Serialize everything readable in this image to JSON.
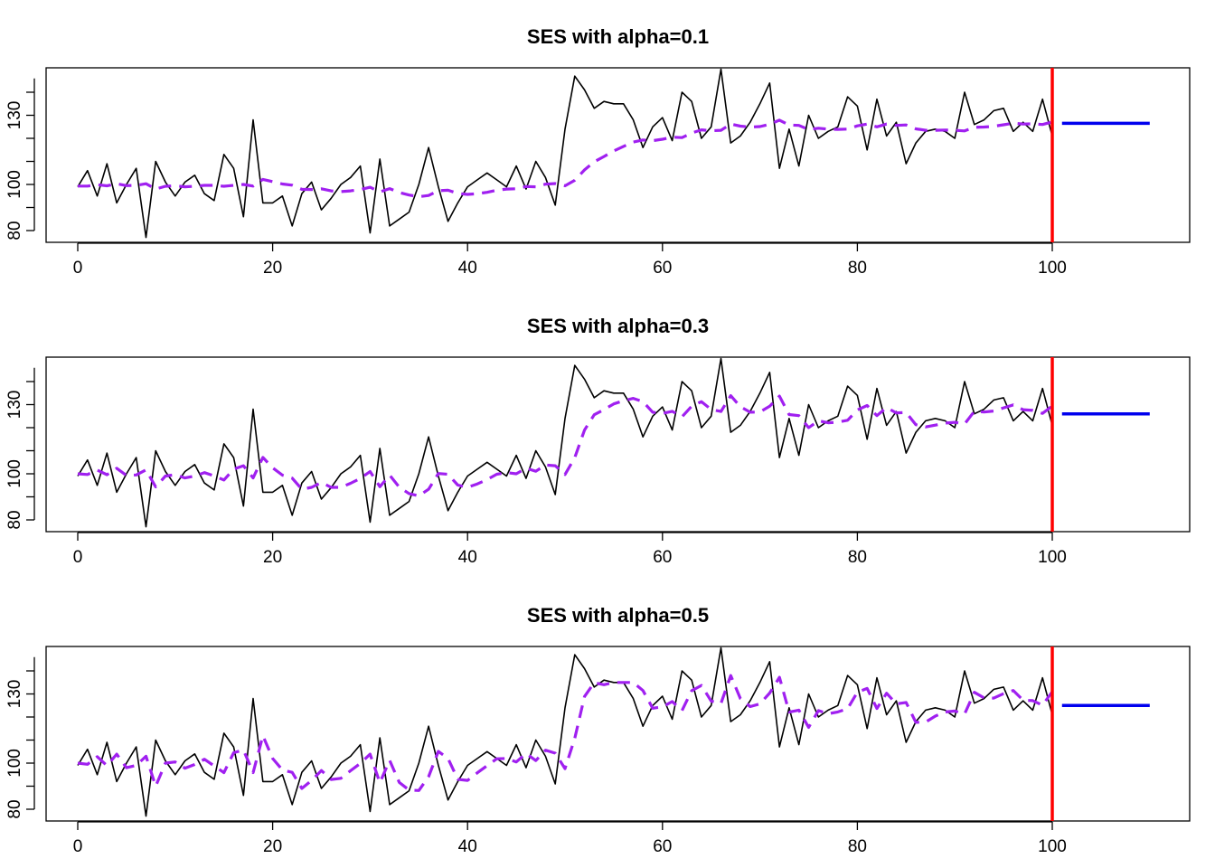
{
  "chart_data": [
    {
      "type": "line",
      "title": "SES with alpha=0.1",
      "alpha": 0.1,
      "xlim": [
        0,
        110
      ],
      "ylim": [
        75,
        147
      ],
      "x_ticks": [
        0,
        20,
        40,
        60,
        80,
        100
      ],
      "y_ticks": [
        80,
        100,
        130
      ],
      "forecast_origin": 100,
      "forecast_horizon": [
        101,
        110
      ],
      "forecast_value": 126.5,
      "colors": {
        "observed": "#000000",
        "fitted": "#a020f0",
        "forecast": "#0000ee",
        "origin_line": "#ff0000"
      },
      "series": [
        {
          "name": "observed",
          "style": "solid",
          "values": [
            99,
            106,
            95,
            109,
            92,
            100,
            107,
            77,
            110,
            101,
            95,
            101,
            104,
            96,
            93,
            113,
            107,
            86,
            128,
            92,
            92,
            95,
            82,
            96,
            101,
            89,
            94,
            100,
            103,
            108,
            79,
            111,
            82,
            85,
            88,
            100,
            116,
            99,
            84,
            92,
            99,
            102,
            105,
            102,
            99,
            108,
            98,
            110,
            103,
            91,
            124,
            147,
            141,
            133,
            136,
            135,
            135,
            128,
            116,
            125,
            129,
            119,
            140,
            136,
            120,
            125,
            150,
            118,
            121,
            127,
            135,
            144,
            107,
            124,
            108,
            130,
            120,
            123,
            125,
            138,
            134,
            115,
            137,
            121,
            127,
            109,
            118,
            123,
            124,
            123,
            120,
            140,
            126,
            128,
            132,
            133,
            123,
            127,
            123,
            137,
            121
          ]
        },
        {
          "name": "fitted",
          "style": "dashed",
          "values": [
            99.3,
            99.3,
            99.9,
            99.4,
            100.3,
            99.5,
            99.6,
            100.3,
            98.0,
            99.2,
            99.4,
            99.0,
            99.2,
            99.6,
            99.6,
            99.2,
            99.6,
            100.0,
            99.3,
            102.2,
            101.2,
            100.2,
            99.7,
            97.9,
            97.8,
            98.1,
            97.2,
            96.9,
            97.2,
            97.8,
            98.8,
            96.8,
            98.2,
            96.5,
            95.4,
            94.7,
            95.2,
            97.3,
            97.5,
            96.1,
            95.7,
            96.0,
            96.6,
            97.5,
            98.0,
            98.1,
            99.1,
            99.0,
            100.1,
            100.4,
            99.4,
            101.8,
            106.3,
            109.8,
            112.1,
            114.5,
            116.5,
            118.4,
            119.3,
            119.0,
            119.6,
            120.5,
            120.3,
            122.3,
            123.7,
            123.3,
            123.5,
            126.2,
            125.3,
            124.9,
            125.1,
            126.1,
            127.9,
            125.8,
            125.6,
            123.8,
            124.4,
            124.0,
            123.9,
            124.0,
            125.4,
            126.2,
            125.0,
            126.2,
            125.6,
            125.8,
            124.1,
            123.5,
            123.5,
            123.6,
            123.5,
            123.2,
            124.8,
            124.9,
            125.2,
            125.9,
            126.6,
            126.2,
            126.3,
            126.0,
            127.1
          ]
        }
      ]
    },
    {
      "type": "line",
      "title": "SES with alpha=0.3",
      "alpha": 0.3,
      "xlim": [
        0,
        110
      ],
      "ylim": [
        75,
        147
      ],
      "x_ticks": [
        0,
        20,
        40,
        60,
        80,
        100
      ],
      "y_ticks": [
        80,
        100,
        130
      ],
      "forecast_origin": 100,
      "forecast_horizon": [
        101,
        110
      ],
      "forecast_value": 126,
      "colors": {
        "observed": "#000000",
        "fitted": "#a020f0",
        "forecast": "#0000ee",
        "origin_line": "#ff0000"
      },
      "series": [
        {
          "name": "observed",
          "style": "solid",
          "values": [
            99,
            106,
            95,
            109,
            92,
            100,
            107,
            77,
            110,
            101,
            95,
            101,
            104,
            96,
            93,
            113,
            107,
            86,
            128,
            92,
            92,
            95,
            82,
            96,
            101,
            89,
            94,
            100,
            103,
            108,
            79,
            111,
            82,
            85,
            88,
            100,
            116,
            99,
            84,
            92,
            99,
            102,
            105,
            102,
            99,
            108,
            98,
            110,
            103,
            91,
            124,
            147,
            141,
            133,
            136,
            135,
            135,
            128,
            116,
            125,
            129,
            119,
            140,
            136,
            120,
            125,
            150,
            118,
            121,
            127,
            135,
            144,
            107,
            124,
            108,
            130,
            120,
            123,
            125,
            138,
            134,
            115,
            137,
            121,
            127,
            109,
            118,
            123,
            124,
            123,
            120,
            140,
            126,
            128,
            132,
            133,
            123,
            127,
            123,
            137,
            121
          ]
        },
        {
          "name": "fitted",
          "style": "dashed",
          "values": [
            100.0,
            99.7,
            101.6,
            99.6,
            102.4,
            99.3,
            99.5,
            101.7,
            94.3,
            99.0,
            99.6,
            98.2,
            99.0,
            100.5,
            99.1,
            97.3,
            102.0,
            103.5,
            98.2,
            107.1,
            102.6,
            99.4,
            98.1,
            93.3,
            94.1,
            96.2,
            94.1,
            94.1,
            95.9,
            98.0,
            101.0,
            94.4,
            99.4,
            94.2,
            91.4,
            90.4,
            93.3,
            100.1,
            99.8,
            95.1,
            94.1,
            95.6,
            97.5,
            99.8,
            100.5,
            100.0,
            102.4,
            101.1,
            103.8,
            103.5,
            99.7,
            107.0,
            119.0,
            125.6,
            127.8,
            130.3,
            131.7,
            132.7,
            131.3,
            126.7,
            126.2,
            127.1,
            124.7,
            129.3,
            131.3,
            127.9,
            127.0,
            133.9,
            129.1,
            126.7,
            126.8,
            129.3,
            133.7,
            125.7,
            125.2,
            120.0,
            123.0,
            122.1,
            122.4,
            123.2,
            127.7,
            129.6,
            125.2,
            128.7,
            126.4,
            126.6,
            121.3,
            120.3,
            121.1,
            122.0,
            122.3,
            121.6,
            127.1,
            126.8,
            127.2,
            128.6,
            129.9,
            127.8,
            127.5,
            126.2,
            129.4
          ]
        }
      ]
    },
    {
      "type": "line",
      "title": "SES with alpha=0.5",
      "alpha": 0.5,
      "xlim": [
        0,
        110
      ],
      "ylim": [
        75,
        147
      ],
      "x_ticks": [
        0,
        20,
        40,
        60,
        80,
        100
      ],
      "y_ticks": [
        80,
        100,
        130
      ],
      "forecast_origin": 100,
      "forecast_horizon": [
        101,
        110
      ],
      "forecast_value": 125,
      "colors": {
        "observed": "#000000",
        "fitted": "#a020f0",
        "forecast": "#0000ee",
        "origin_line": "#ff0000"
      },
      "series": [
        {
          "name": "observed",
          "style": "solid",
          "values": [
            99,
            106,
            95,
            109,
            92,
            100,
            107,
            77,
            110,
            101,
            95,
            101,
            104,
            96,
            93,
            113,
            107,
            86,
            128,
            92,
            92,
            95,
            82,
            96,
            101,
            89,
            94,
            100,
            103,
            108,
            79,
            111,
            82,
            85,
            88,
            100,
            116,
            99,
            84,
            92,
            99,
            102,
            105,
            102,
            99,
            108,
            98,
            110,
            103,
            91,
            124,
            147,
            141,
            133,
            136,
            135,
            135,
            128,
            116,
            125,
            129,
            119,
            140,
            136,
            120,
            125,
            150,
            118,
            121,
            127,
            135,
            144,
            107,
            124,
            108,
            130,
            120,
            123,
            125,
            138,
            134,
            115,
            137,
            121,
            127,
            109,
            118,
            123,
            124,
            123,
            120,
            140,
            126,
            128,
            132,
            133,
            123,
            127,
            123,
            137,
            121
          ]
        },
        {
          "name": "fitted",
          "style": "dashed",
          "values": [
            100.0,
            99.5,
            102.8,
            98.9,
            103.9,
            98.0,
            99.0,
            103.0,
            90.0,
            100.0,
            100.5,
            97.8,
            99.4,
            101.7,
            98.8,
            95.9,
            104.5,
            105.7,
            95.9,
            111.9,
            102.0,
            97.0,
            96.0,
            89.0,
            92.5,
            96.8,
            92.9,
            93.4,
            96.7,
            99.9,
            103.9,
            91.5,
            101.2,
            91.6,
            88.3,
            88.1,
            94.1,
            105.1,
            102.0,
            93.0,
            92.5,
            95.8,
            98.9,
            101.9,
            102.0,
            100.5,
            104.2,
            101.1,
            105.6,
            104.3,
            97.6,
            110.8,
            128.9,
            134.9,
            134.0,
            135.0,
            135.0,
            135.0,
            131.5,
            123.8,
            124.4,
            126.7,
            122.8,
            131.4,
            133.7,
            126.9,
            125.9,
            138.0,
            128.0,
            124.5,
            125.7,
            130.4,
            137.2,
            122.1,
            123.0,
            115.5,
            122.8,
            121.4,
            122.2,
            123.6,
            130.8,
            132.4,
            123.7,
            130.3,
            125.7,
            126.3,
            117.7,
            117.8,
            120.4,
            122.2,
            122.6,
            121.3,
            130.7,
            128.3,
            128.2,
            130.1,
            131.5,
            127.3,
            127.1,
            125.1,
            131.0
          ]
        }
      ]
    }
  ]
}
